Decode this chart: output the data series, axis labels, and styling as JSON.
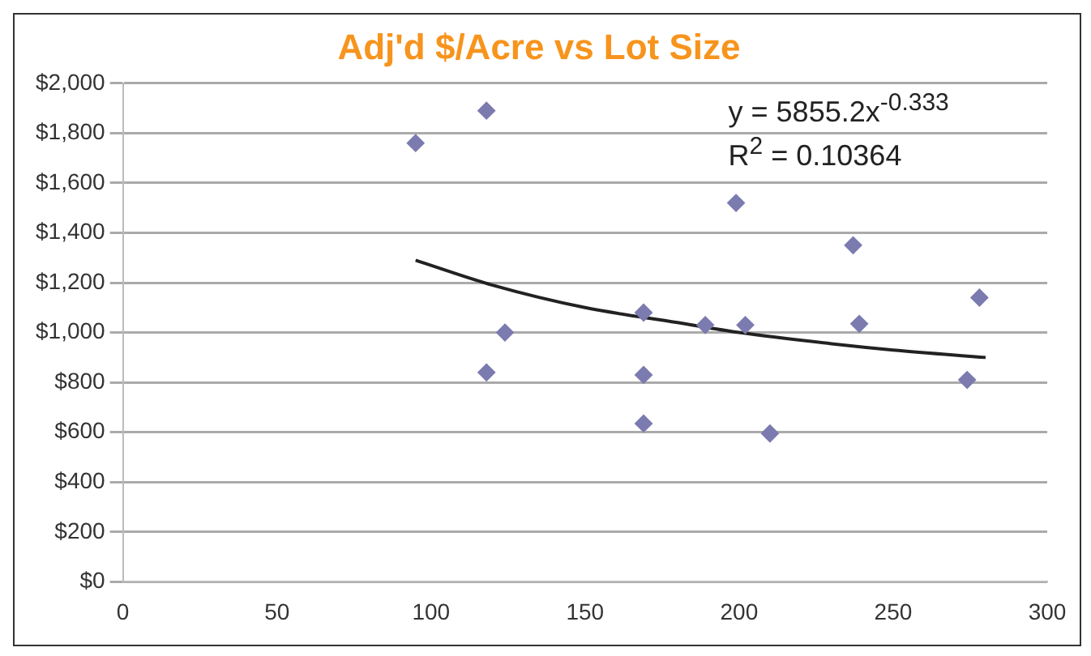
{
  "chart_data": {
    "type": "scatter",
    "title": "Adj'd $/Acre vs Lot Size",
    "annotations": [
      "y = 5855.2x$^{-0.333}$",
      "R$^{2}$ = 0.10364"
    ],
    "series": [
      {
        "color": "#7b7bb0",
        "marker": "diamond",
        "x": [
          95,
          118,
          118,
          124,
          169,
          169,
          169,
          189,
          199,
          202,
          210,
          237,
          239,
          274,
          278
        ],
        "values": [
          1760,
          1890,
          840,
          1000,
          1080,
          830,
          635,
          1030,
          1520,
          1030,
          595,
          1350,
          1035,
          810,
          1140
        ]
      },
      {
        "type": "line",
        "color": "#222222",
        "marker": "none",
        "x": [
          95,
          120,
          150,
          180,
          200,
          230,
          250,
          280
        ],
        "values": [
          1290,
          1190,
          1100,
          1040,
          1000,
          955,
          930,
          900
        ]
      }
    ],
    "xlim": [
      0,
      300
    ],
    "xticks": [
      0,
      50,
      100,
      150,
      200,
      250,
      300
    ],
    "ylim": [
      0,
      2000
    ],
    "yticks": [
      {
        "value": 0,
        "label": "$0"
      },
      {
        "value": 200,
        "label": "$200"
      },
      {
        "value": 400,
        "label": "$400"
      },
      {
        "value": 600,
        "label": "$600"
      },
      {
        "value": 800,
        "label": "$800"
      },
      {
        "value": 1000,
        "label": "$1,000"
      },
      {
        "value": 1200,
        "label": "$1,200"
      },
      {
        "value": 1400,
        "label": "$1,400"
      },
      {
        "value": 1600,
        "label": "$1,600"
      },
      {
        "value": 1800,
        "label": "$1,800"
      },
      {
        "value": 2000,
        "label": "$2,000"
      }
    ],
    "grid": "y",
    "legend": false
  }
}
